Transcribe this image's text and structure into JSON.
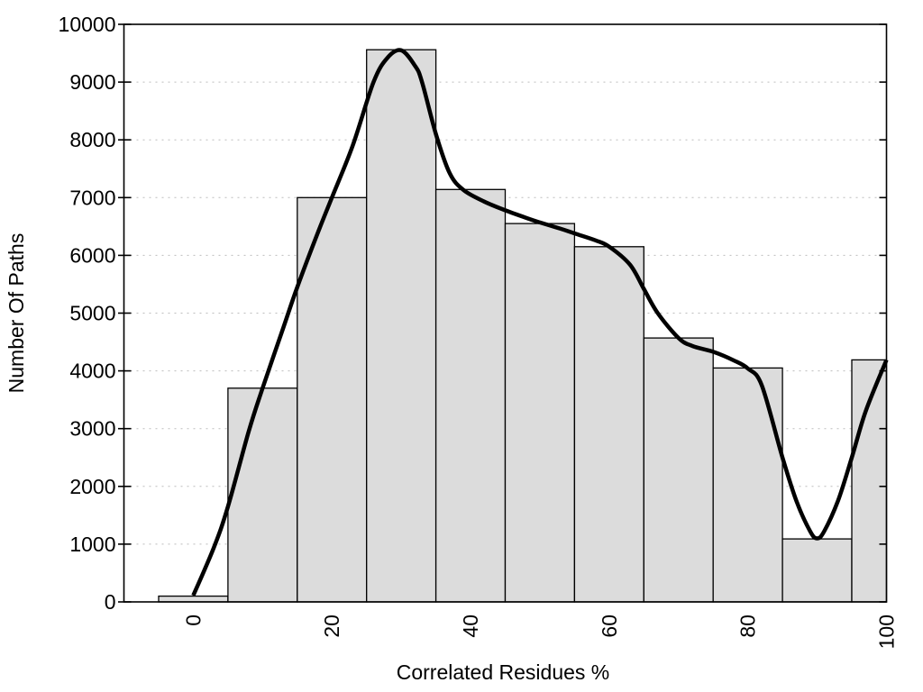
{
  "chart_data": {
    "type": "bar",
    "subtype": "histogram-with-smoothed-curve",
    "title": "",
    "xlabel": "Correlated Residues %",
    "ylabel": "Number Of Paths",
    "xlim": [
      -10,
      100
    ],
    "ylim": [
      0,
      10000
    ],
    "x_ticks": [
      0,
      20,
      40,
      60,
      80,
      100
    ],
    "y_ticks": [
      0,
      1000,
      2000,
      3000,
      4000,
      5000,
      6000,
      7000,
      8000,
      9000,
      10000
    ],
    "grid": {
      "horizontal": true,
      "vertical": false,
      "line_style": "dotted"
    },
    "legend": null,
    "bars": {
      "bin_width": 10,
      "centers": [
        0,
        10,
        20,
        30,
        40,
        50,
        60,
        70,
        80,
        90,
        100
      ],
      "values": [
        100,
        3700,
        7000,
        9560,
        7140,
        6550,
        6150,
        4570,
        4050,
        1090,
        4190
      ]
    },
    "curve": {
      "name": "smoothed-fit-curve",
      "points": [
        [
          0,
          110
        ],
        [
          3,
          950
        ],
        [
          5,
          1650
        ],
        [
          8,
          2950
        ],
        [
          10,
          3700
        ],
        [
          13,
          4750
        ],
        [
          15,
          5450
        ],
        [
          18,
          6400
        ],
        [
          20,
          7000
        ],
        [
          23,
          7900
        ],
        [
          26,
          9000
        ],
        [
          28,
          9420
        ],
        [
          30,
          9550
        ],
        [
          32,
          9280
        ],
        [
          33,
          9000
        ],
        [
          35,
          8100
        ],
        [
          37,
          7420
        ],
        [
          39,
          7130
        ],
        [
          42,
          6930
        ],
        [
          45,
          6780
        ],
        [
          48,
          6650
        ],
        [
          50,
          6570
        ],
        [
          53,
          6460
        ],
        [
          55,
          6380
        ],
        [
          58,
          6260
        ],
        [
          60,
          6150
        ],
        [
          63,
          5840
        ],
        [
          65,
          5420
        ],
        [
          67,
          5000
        ],
        [
          70,
          4570
        ],
        [
          72,
          4430
        ],
        [
          75,
          4330
        ],
        [
          78,
          4180
        ],
        [
          80,
          4040
        ],
        [
          82,
          3750
        ],
        [
          85,
          2500
        ],
        [
          87,
          1750
        ],
        [
          89,
          1220
        ],
        [
          90,
          1100
        ],
        [
          91,
          1220
        ],
        [
          93,
          1750
        ],
        [
          95,
          2500
        ],
        [
          97,
          3300
        ],
        [
          100,
          4190
        ]
      ]
    }
  },
  "style": {
    "background": "#ffffff",
    "bar_fill": "#dcdcdc",
    "bar_stroke": "#000000",
    "curve_color": "#000000",
    "grid_color": "#bdbdbd",
    "axis_color": "#000000",
    "text_color": "#000000"
  }
}
